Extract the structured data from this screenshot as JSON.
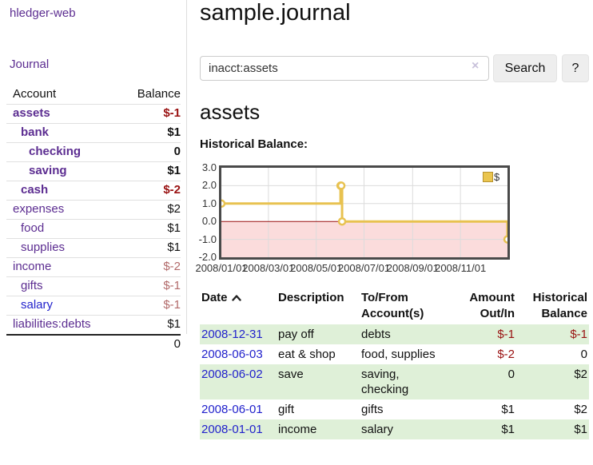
{
  "colors": {
    "link_purple": "#5c2d91",
    "link_blue": "#2222cc",
    "negative_strong": "#991111",
    "negative_soft": "#b26a6a",
    "row_green": "#dff0d8",
    "chart_line_gold": "#e8c250",
    "chart_fill_pink": "#fbdcdc",
    "chart_grid": "#dcdcdc",
    "chart_zero_line": "#991111",
    "chart_border": "#4a4a4a",
    "legend_swatch_fill": "#eac54f"
  },
  "sidebar": {
    "brand": "hledger-web",
    "journal_link": "Journal",
    "accounts_table": {
      "account_header": "Account",
      "balance_header": "Balance",
      "rows": [
        {
          "name": "assets",
          "depth": 1,
          "bold": true,
          "blue": false,
          "balance": "$-1",
          "balance_class": "neg-strong"
        },
        {
          "name": "bank",
          "depth": 2,
          "bold": true,
          "blue": false,
          "balance": "$1",
          "balance_class": "pos"
        },
        {
          "name": "checking",
          "depth": 3,
          "bold": true,
          "blue": false,
          "balance": "0",
          "balance_class": "pos"
        },
        {
          "name": "saving",
          "depth": 3,
          "bold": true,
          "blue": false,
          "balance": "$1",
          "balance_class": "pos"
        },
        {
          "name": "cash",
          "depth": 2,
          "bold": true,
          "blue": false,
          "balance": "$-2",
          "balance_class": "neg-strong"
        },
        {
          "name": "expenses",
          "depth": 1,
          "bold": false,
          "blue": false,
          "balance": "$2",
          "balance_class": "pos"
        },
        {
          "name": "food",
          "depth": 2,
          "bold": false,
          "blue": false,
          "balance": "$1",
          "balance_class": "pos"
        },
        {
          "name": "supplies",
          "depth": 2,
          "bold": false,
          "blue": false,
          "balance": "$1",
          "balance_class": "pos"
        },
        {
          "name": "income",
          "depth": 1,
          "bold": false,
          "blue": false,
          "balance": "$-2",
          "balance_class": "neg-soft"
        },
        {
          "name": "gifts",
          "depth": 2,
          "bold": false,
          "blue": false,
          "balance": "$-1",
          "balance_class": "neg-soft"
        },
        {
          "name": "salary",
          "depth": 2,
          "bold": false,
          "blue": true,
          "balance": "$-1",
          "balance_class": "neg-soft"
        },
        {
          "name": "liabilities:debts",
          "depth": 1,
          "bold": false,
          "blue": false,
          "balance": "$1",
          "balance_class": "pos"
        }
      ],
      "total": "0"
    }
  },
  "header": {
    "title": "sample.journal"
  },
  "search": {
    "value": "inacct:assets",
    "clear_icon": "×",
    "search_button": "Search",
    "help_button": "?"
  },
  "account_view": {
    "heading": "assets",
    "chart_label": "Historical Balance:"
  },
  "chart_data": {
    "type": "line",
    "step": true,
    "title": "Historical Balance",
    "legend": [
      {
        "label": "$"
      }
    ],
    "legend_position": "top-right",
    "x_range": [
      "2008-01-01",
      "2008-12-31"
    ],
    "ylim": [
      -2,
      3
    ],
    "y_ticks": [
      {
        "value": 3,
        "label": "3.0"
      },
      {
        "value": 2,
        "label": "2.0"
      },
      {
        "value": 1,
        "label": "1.0"
      },
      {
        "value": 0,
        "label": "0.0"
      },
      {
        "value": -1,
        "label": "-1.0"
      },
      {
        "value": -2,
        "label": "-2.0"
      }
    ],
    "y_gridlines": [
      2,
      1,
      -1
    ],
    "x_ticks": [
      {
        "date": "2008-01-01",
        "label": "2008/01/01"
      },
      {
        "date": "2008-03-01",
        "label": "2008/03/01"
      },
      {
        "date": "2008-05-01",
        "label": "2008/05/01"
      },
      {
        "date": "2008-07-01",
        "label": "2008/07/01"
      },
      {
        "date": "2008-09-01",
        "label": "2008/09/01"
      },
      {
        "date": "2008-11-01",
        "label": "2008/11/01"
      }
    ],
    "series": [
      {
        "name": "$",
        "points": [
          {
            "date": "2008-01-01",
            "value": 1
          },
          {
            "date": "2008-06-01",
            "value": 2
          },
          {
            "date": "2008-06-02",
            "value": 2
          },
          {
            "date": "2008-06-03",
            "value": 0
          },
          {
            "date": "2008-12-31",
            "value": -1
          }
        ]
      }
    ],
    "negative_region_shaded": true,
    "grid": true
  },
  "register_table": {
    "headers": {
      "date": "Date",
      "description": "Description",
      "accounts": "To/From Account(s)",
      "amount": "Amount Out/In",
      "balance": "Historical Balance"
    },
    "rows": [
      {
        "date": "2008-12-31",
        "description": "pay off",
        "accounts": "debts",
        "amount": "$-1",
        "amount_class": "neg-strong",
        "balance": "$-1",
        "balance_class": "neg-strong"
      },
      {
        "date": "2008-06-03",
        "description": "eat & shop",
        "accounts": "food, supplies",
        "amount": "$-2",
        "amount_class": "neg-strong",
        "balance": "0",
        "balance_class": "pos"
      },
      {
        "date": "2008-06-02",
        "description": "save",
        "accounts": "saving, checking",
        "amount": "0",
        "amount_class": "pos",
        "balance": "$2",
        "balance_class": "pos"
      },
      {
        "date": "2008-06-01",
        "description": "gift",
        "accounts": "gifts",
        "amount": "$1",
        "amount_class": "pos",
        "balance": "$2",
        "balance_class": "pos"
      },
      {
        "date": "2008-01-01",
        "description": "income",
        "accounts": "salary",
        "amount": "$1",
        "amount_class": "pos",
        "balance": "$1",
        "balance_class": "pos"
      }
    ]
  }
}
